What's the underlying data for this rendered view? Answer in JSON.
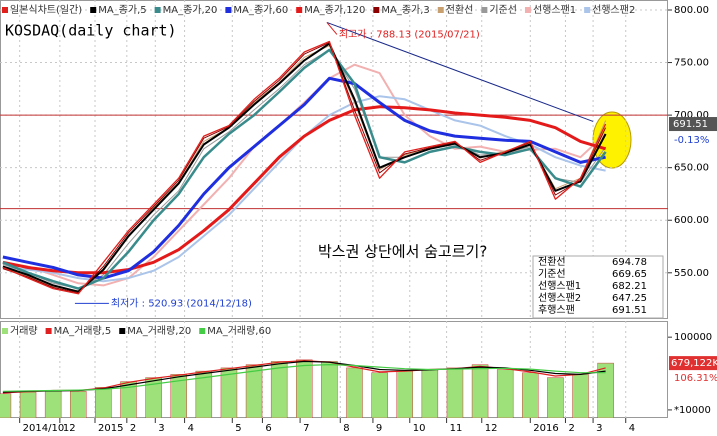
{
  "chart_data": [
    {
      "type": "line",
      "title": "KOSDAQ(daily chart)",
      "x": [
        -11,
        -8,
        -5,
        -2,
        1,
        4,
        7,
        10,
        13,
        16,
        19,
        22,
        25,
        28,
        31,
        34,
        37,
        40,
        43,
        46,
        49,
        52,
        55,
        58,
        61
      ],
      "series": [
        {
          "name": "일본식차트(일간)",
          "color": "#e0201c",
          "values": [
            555,
            545,
            535,
            530,
            560,
            590,
            615,
            640,
            680,
            690,
            715,
            735,
            760,
            770,
            700,
            640,
            665,
            670,
            675,
            655,
            665,
            675,
            620,
            640,
            691.51
          ]
        },
        {
          "name": "MA_종가,5",
          "color": "#000000",
          "values": [
            556,
            548,
            538,
            532,
            553,
            585,
            610,
            635,
            672,
            688,
            710,
            730,
            752,
            768,
            715,
            650,
            660,
            668,
            673,
            660,
            664,
            672,
            628,
            637,
            682
          ]
        },
        {
          "name": "MA_종가,20",
          "color": "#3a8c8c",
          "values": [
            560,
            550,
            542,
            535,
            545,
            570,
            600,
            625,
            660,
            682,
            700,
            722,
            745,
            762,
            730,
            660,
            655,
            665,
            670,
            665,
            662,
            668,
            640,
            632,
            665
          ]
        },
        {
          "name": "MA_종가,60",
          "color": "#1f2fe0",
          "values": [
            565,
            560,
            555,
            548,
            545,
            552,
            570,
            595,
            625,
            650,
            670,
            690,
            710,
            735,
            730,
            712,
            695,
            685,
            680,
            678,
            676,
            675,
            665,
            655,
            660
          ]
        },
        {
          "name": "MA_종가,120",
          "color": "#e41a1a",
          "values": [
            560,
            555,
            552,
            550,
            550,
            553,
            560,
            572,
            590,
            610,
            635,
            660,
            680,
            695,
            705,
            708,
            707,
            705,
            702,
            700,
            698,
            695,
            688,
            675,
            668
          ]
        },
        {
          "name": "MA_종가,3",
          "color": "#8b0000",
          "values": [
            554,
            546,
            536,
            531,
            556,
            588,
            613,
            638,
            678,
            689,
            713,
            733,
            758,
            769,
            705,
            645,
            663,
            669,
            674,
            657,
            665,
            674,
            624,
            638,
            688
          ]
        },
        {
          "name": "전환선",
          "color": "#c8a070",
          "values": [
            555,
            547,
            537,
            533,
            552,
            584,
            612,
            636,
            675,
            688,
            712,
            731,
            755,
            766,
            712,
            648,
            662,
            669,
            674,
            659,
            666,
            673,
            630,
            640,
            694.78
          ]
        },
        {
          "name": "기준선",
          "color": "#999999",
          "values": [
            558,
            550,
            540,
            535,
            548,
            578,
            605,
            628,
            668,
            684,
            705,
            725,
            748,
            762,
            725,
            660,
            660,
            668,
            672,
            662,
            664,
            670,
            640,
            636,
            669.65
          ]
        },
        {
          "name": "선행스팬1",
          "color": "#f2b0b0",
          "values": [
            560,
            556,
            548,
            540,
            538,
            545,
            565,
            590,
            615,
            640,
            670,
            690,
            712,
            735,
            748,
            740,
            700,
            680,
            668,
            670,
            665,
            667,
            668,
            660,
            682.21
          ]
        },
        {
          "name": "선행스팬2",
          "color": "#aac4ea",
          "values": [
            555,
            553,
            550,
            545,
            542,
            545,
            552,
            565,
            585,
            605,
            630,
            655,
            680,
            700,
            712,
            718,
            715,
            705,
            695,
            690,
            680,
            672,
            660,
            652,
            647.25
          ]
        }
      ],
      "xlim": [
        -11.35,
        68.45
      ],
      "ylim": [
        507,
        809.5
      ],
      "yticks": [
        {
          "value": 550,
          "label": "550.00"
        },
        {
          "value": 600,
          "label": "600.00"
        },
        {
          "value": 650,
          "label": "650.00"
        },
        {
          "value": 700,
          "label": "700.00"
        },
        {
          "value": 750,
          "label": "750.00"
        },
        {
          "value": 800,
          "label": "800.00"
        }
      ],
      "grid": true,
      "reference_lines": [
        700,
        611
      ],
      "trendline": {
        "x": [
          27.7,
          59.5
        ],
        "values": [
          788.13,
          694
        ]
      },
      "annotations": [
        {
          "label": "최고가 : 788.13 (2015/07/21)",
          "x": 27.7,
          "value": 788.13,
          "color": "#e02020"
        },
        {
          "label": "최저가 : 520.93 (2014/12/18)",
          "x": -2.4,
          "value": 520.93,
          "color": "#2040d0"
        }
      ],
      "note": "박스권 상단에서 숨고르기?",
      "change_label": "-0.13%",
      "indicator_box": [
        {
          "name": "전환선",
          "value": 694.78
        },
        {
          "name": "기준선",
          "value": 669.65
        },
        {
          "name": "선행스팬1",
          "value": 682.21
        },
        {
          "name": "선행스팬2",
          "value": 647.25
        },
        {
          "name": "후행스팬",
          "value": 691.51
        }
      ]
    },
    {
      "type": "bar",
      "x": [
        -11,
        -8,
        -5,
        -2,
        1,
        4,
        7,
        10,
        13,
        16,
        19,
        22,
        25,
        28,
        31,
        34,
        37,
        40,
        43,
        46,
        49,
        52,
        55,
        58,
        61
      ],
      "series": [
        {
          "name": "거래량",
          "color": "#9ee07a",
          "values": [
            30000,
            32000,
            34000,
            33000,
            38000,
            45000,
            50000,
            54000,
            58000,
            62000,
            66000,
            70000,
            72000,
            70000,
            62000,
            56000,
            58000,
            60000,
            62000,
            66000,
            60000,
            56000,
            50000,
            54000,
            67912.2
          ]
        },
        {
          "name": "MA_거래량,5",
          "color": "#e02020",
          "values": [
            31000,
            32500,
            34000,
            34000,
            37000,
            44000,
            49000,
            53000,
            57000,
            61000,
            65000,
            69000,
            71000,
            69000,
            63000,
            57000,
            58000,
            60000,
            61000,
            64000,
            61000,
            57000,
            52000,
            54000,
            62000
          ]
        },
        {
          "name": "MA_거래량,20",
          "color": "#000000",
          "values": [
            32000,
            33000,
            33500,
            34000,
            36000,
            41000,
            46000,
            51000,
            55000,
            59000,
            63000,
            67000,
            70000,
            69000,
            65000,
            60000,
            59000,
            59500,
            61000,
            63000,
            62000,
            59000,
            55000,
            54000,
            58000
          ]
        },
        {
          "name": "MA_거래량,60",
          "color": "#44cc44",
          "values": [
            33000,
            33500,
            34000,
            34500,
            35500,
            38000,
            42000,
            46000,
            50000,
            54000,
            58000,
            62000,
            65000,
            66000,
            65000,
            63000,
            61000,
            60000,
            60500,
            61000,
            61500,
            60500,
            58000,
            56000,
            56000
          ]
        }
      ],
      "xlim": [
        -11.35,
        68.45
      ],
      "xticks": [
        {
          "value": -9,
          "label": "2014/10"
        },
        {
          "value": -4.2,
          "label": "12"
        },
        {
          "value": 0,
          "label": "2015"
        },
        {
          "value": 3.8,
          "label": "2"
        },
        {
          "value": 7.2,
          "label": "3"
        },
        {
          "value": 10.7,
          "label": "4"
        },
        {
          "value": 16.4,
          "label": "5"
        },
        {
          "value": 20,
          "label": "6"
        },
        {
          "value": 24.5,
          "label": "7"
        },
        {
          "value": 29.3,
          "label": "8"
        },
        {
          "value": 33.2,
          "label": "9"
        },
        {
          "value": 37.6,
          "label": "10"
        },
        {
          "value": 42,
          "label": "11"
        },
        {
          "value": 46.2,
          "label": "12"
        },
        {
          "value": 52,
          "label": "2016"
        },
        {
          "value": 56.2,
          "label": "2"
        },
        {
          "value": 59.5,
          "label": "3"
        },
        {
          "value": 63.4,
          "label": "4"
        }
      ],
      "ylim": [
        0,
        120000
      ],
      "yticks": [
        {
          "value": 10000,
          "label": "*10000"
        },
        100000
      ],
      "last_label": "679,122K",
      "change_label": "106.31%"
    }
  ]
}
